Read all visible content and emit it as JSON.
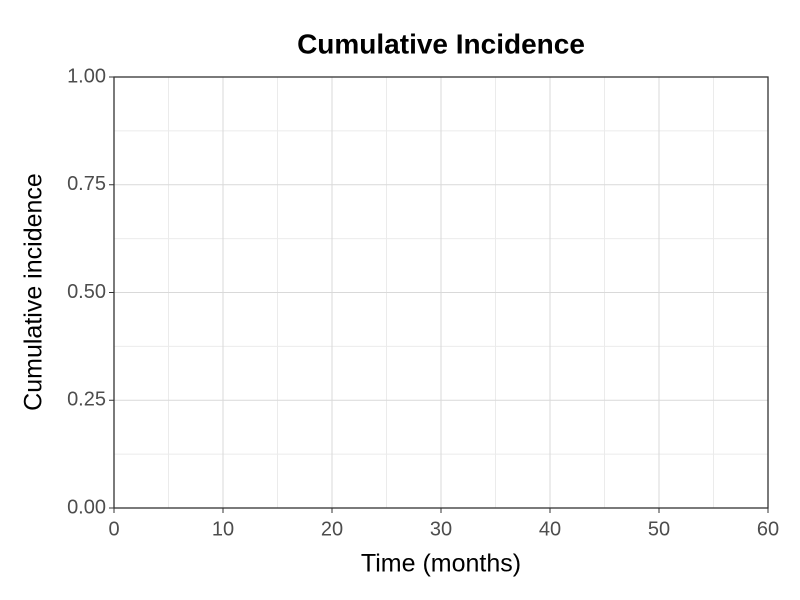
{
  "chart_data": {
    "type": "line",
    "title": "Cumulative Incidence",
    "x_label": "Time (months)",
    "y_label": "Cumulative incidence",
    "xlim": [
      0,
      60
    ],
    "xticks": [
      0,
      10,
      20,
      30,
      40,
      50,
      60
    ],
    "ylim": [
      0,
      1
    ],
    "yticks": [
      {
        "value": 0,
        "label": "0.00"
      },
      0.25,
      {
        "value": 0.5,
        "label": "0.50"
      },
      0.75,
      {
        "value": 1,
        "label": "1.00"
      }
    ],
    "grid": true,
    "minor_grid": true
  }
}
